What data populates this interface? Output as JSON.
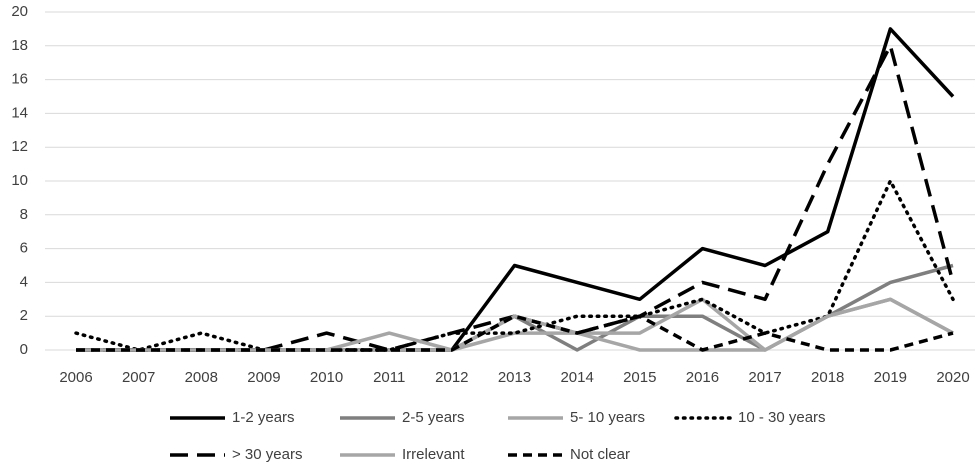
{
  "chart_data": {
    "type": "line",
    "categories": [
      "2006",
      "2007",
      "2008",
      "2009",
      "2010",
      "2011",
      "2012",
      "2013",
      "2014",
      "2015",
      "2016",
      "2017",
      "2018",
      "2019",
      "2020"
    ],
    "series": [
      {
        "name": "1-2 years",
        "color": "#000000",
        "dash": "solid",
        "values": [
          0,
          0,
          0,
          0,
          0,
          0,
          0,
          5,
          4,
          3,
          6,
          5,
          7,
          19,
          15
        ]
      },
      {
        "name": "2-5 years",
        "color": "#7f7f7f",
        "dash": "solid",
        "values": [
          0,
          0,
          0,
          0,
          0,
          0,
          0,
          2,
          0,
          2,
          2,
          0,
          2,
          4,
          5
        ]
      },
      {
        "name": "5- 10 years",
        "color": "#a6a6a6",
        "dash": "solid",
        "values": [
          0,
          0,
          0,
          0,
          0,
          0,
          0,
          1,
          1,
          1,
          3,
          0,
          2,
          3,
          1
        ]
      },
      {
        "name": "10 - 30 years",
        "color": "#000000",
        "dash": "dot",
        "values": [
          1,
          0,
          1,
          0,
          0,
          0,
          1,
          1,
          2,
          2,
          3,
          1,
          2,
          10,
          3
        ]
      },
      {
        "name": "> 30 years",
        "color": "#000000",
        "dash": "longdash",
        "values": [
          0,
          0,
          0,
          0,
          1,
          0,
          1,
          2,
          1,
          2,
          4,
          3,
          11,
          18,
          4
        ]
      },
      {
        "name": "Irrelevant",
        "color": "#a6a6a6",
        "dash": "solid",
        "values": [
          0,
          0,
          0,
          0,
          0,
          1,
          0,
          2,
          1,
          0,
          0,
          0,
          2,
          3,
          1
        ]
      },
      {
        "name": "Not clear",
        "color": "#000000",
        "dash": "dash",
        "values": [
          0,
          0,
          0,
          0,
          0,
          0,
          0,
          2,
          1,
          2,
          0,
          1,
          0,
          0,
          1
        ]
      }
    ],
    "ylim": [
      0,
      20
    ],
    "yticks": [
      0,
      2,
      4,
      6,
      8,
      10,
      12,
      14,
      16,
      18,
      20
    ],
    "grid": true
  }
}
